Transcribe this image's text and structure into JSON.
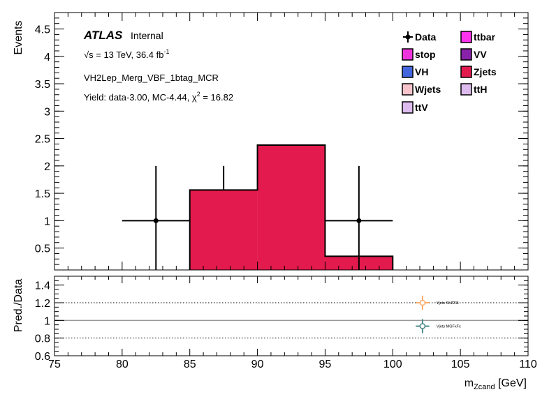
{
  "chart_data": [
    {
      "type": "bar",
      "panel": "main",
      "ylabel": "Events",
      "xlim": [
        75,
        110
      ],
      "ylim": [
        0.1,
        4.8
      ],
      "yticks": [
        0.5,
        1,
        1.5,
        2,
        2.5,
        3,
        3.5,
        4,
        4.5
      ],
      "ytick_labels": [
        "0.5",
        "1",
        "1.5",
        "2",
        "2.5",
        "3",
        "3.5",
        "4",
        "4.5"
      ],
      "stack": [
        {
          "name": "Zjets",
          "color": "#e31a4d",
          "bins": [
            [
              85,
              90,
              1.56
            ],
            [
              90,
              95,
              2.38
            ],
            [
              95,
              100,
              0.35
            ]
          ]
        }
      ],
      "data": {
        "name": "Data",
        "points": [
          {
            "x": 82.5,
            "y": 1,
            "xerr": 2.5,
            "ylo": 0.1,
            "yhi": 2.0
          },
          {
            "x": 97.5,
            "y": 1,
            "xerr": 2.5,
            "ylo": 0.1,
            "yhi": 2.0
          }
        ],
        "stubs": [
          {
            "x": 87.5,
            "ylo": 1.56,
            "yhi": 2.0
          }
        ]
      },
      "annotations": {
        "atlas": "ATLAS",
        "internal": "Internal",
        "sqrt": "√s",
        "energy": " = 13 TeV, 36.4 fb",
        "lumi_exp": "-1",
        "region": "VH2Lep_Merg_VBF_1btag_MCR",
        "yield_a": "Yield: data-3.00, MC-4.44, χ",
        "chi_exp": "2",
        "yield_b": " = 16.82"
      },
      "legend": {
        "placement": "top-right",
        "entries": [
          {
            "label": "Data",
            "kind": "marker",
            "color": "#000000"
          },
          {
            "label": "ttbar",
            "kind": "box",
            "color": "#ff33ee"
          },
          {
            "label": "stop",
            "kind": "box",
            "color": "#ee33dd"
          },
          {
            "label": "VV",
            "kind": "box",
            "color": "#8822aa"
          },
          {
            "label": "VH",
            "kind": "box",
            "color": "#4466dd"
          },
          {
            "label": "Zjets",
            "kind": "box",
            "color": "#e31a4d"
          },
          {
            "label": "Wjets",
            "kind": "box",
            "color": "#f7c4cc"
          },
          {
            "label": "ttH",
            "kind": "box",
            "color": "#ddbbee"
          },
          {
            "label": "ttV",
            "kind": "box",
            "color": "#ddbbee"
          }
        ]
      }
    },
    {
      "type": "scatter",
      "panel": "ratio",
      "ylabel": "Pred./Data",
      "xlabel_main": "m",
      "xlabel_sub": "Zcand",
      "xlabel_unit": " [GeV]",
      "xlim": [
        75,
        110
      ],
      "ylim": [
        0.6,
        1.5
      ],
      "xticks": [
        75,
        80,
        85,
        90,
        95,
        100,
        105,
        110
      ],
      "xtick_labels": [
        "75",
        "80",
        "85",
        "90",
        "95",
        "100",
        "105",
        "110"
      ],
      "yticks": [
        0.6,
        0.8,
        1,
        1.2,
        1.4
      ],
      "ytick_labels": [
        "0.6",
        "0.8",
        "1",
        "1.2",
        "1.4"
      ],
      "dotted_lines": [
        0.8,
        1.2
      ],
      "reference_line": 1.0,
      "series": [
        {
          "name": "Vjets Sh2211",
          "color": "#ffaa66",
          "x": 102.2,
          "y": 1.2,
          "xerr": 0.5,
          "yerr": 0.08
        },
        {
          "name": "Vjets MGFxFx",
          "color": "#4a8a8a",
          "x": 102.2,
          "y": 0.935,
          "xerr": 0.5,
          "yerr": 0.08
        }
      ]
    }
  ]
}
